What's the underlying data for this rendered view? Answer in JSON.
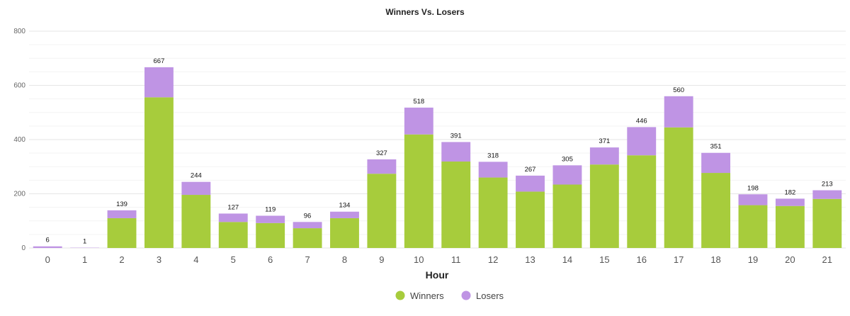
{
  "chart_data": {
    "type": "bar",
    "stacked": true,
    "title": "Winners Vs. Losers",
    "xlabel": "Hour",
    "ylabel": "",
    "ylim": [
      0,
      800
    ],
    "yticks": [
      "0",
      "200",
      "400",
      "600",
      "800"
    ],
    "grid": true,
    "legend_position": "bottom-center",
    "categories": [
      "0",
      "1",
      "2",
      "3",
      "4",
      "5",
      "6",
      "7",
      "8",
      "9",
      "10",
      "11",
      "12",
      "13",
      "14",
      "15",
      "16",
      "17",
      "18",
      "19",
      "20",
      "21"
    ],
    "series": [
      {
        "name": "Winners",
        "color": "#a7cc3c",
        "values": [
          0,
          0,
          110,
          556,
          196,
          96,
          92,
          73,
          110,
          274,
          419,
          319,
          260,
          208,
          234,
          308,
          342,
          445,
          277,
          158,
          155,
          181
        ]
      },
      {
        "name": "Losers",
        "color": "#bf94e4",
        "values": [
          6,
          1,
          29,
          111,
          48,
          31,
          27,
          23,
          24,
          53,
          99,
          72,
          58,
          59,
          71,
          63,
          104,
          115,
          74,
          40,
          27,
          32
        ]
      }
    ],
    "totals": [
      "6",
      "1",
      "139",
      "667",
      "244",
      "127",
      "119",
      "96",
      "134",
      "327",
      "518",
      "391",
      "318",
      "267",
      "305",
      "371",
      "446",
      "560",
      "351",
      "198",
      "182",
      "213"
    ]
  }
}
